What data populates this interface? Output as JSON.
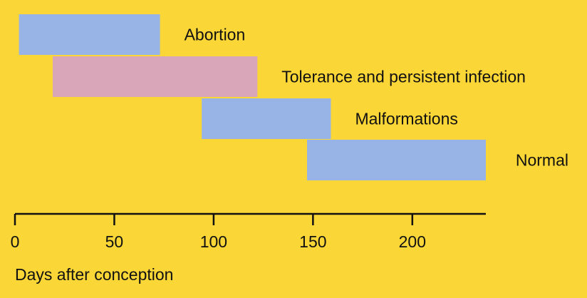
{
  "chart_data": {
    "type": "bar",
    "orientation": "horizontal-range",
    "title": "",
    "xlabel": "Days after conception",
    "ylabel": "",
    "xlim": [
      0,
      237
    ],
    "xticks": [
      0,
      50,
      100,
      150,
      200
    ],
    "grid": false,
    "legend": "none",
    "series": [
      {
        "name": "Abortion",
        "start": 2,
        "end": 73,
        "color": "#98b4e6"
      },
      {
        "name": "Tolerance and persistent infection",
        "start": 19,
        "end": 122,
        "color": "#d8a6b8"
      },
      {
        "name": "Malformations",
        "start": 94,
        "end": 159,
        "color": "#98b4e6"
      },
      {
        "name": "Normal",
        "start": 147,
        "end": 237,
        "color": "#98b4e6"
      }
    ]
  },
  "colors": {
    "background": "#fbd637",
    "axis": "#111111",
    "text": "#111111"
  }
}
